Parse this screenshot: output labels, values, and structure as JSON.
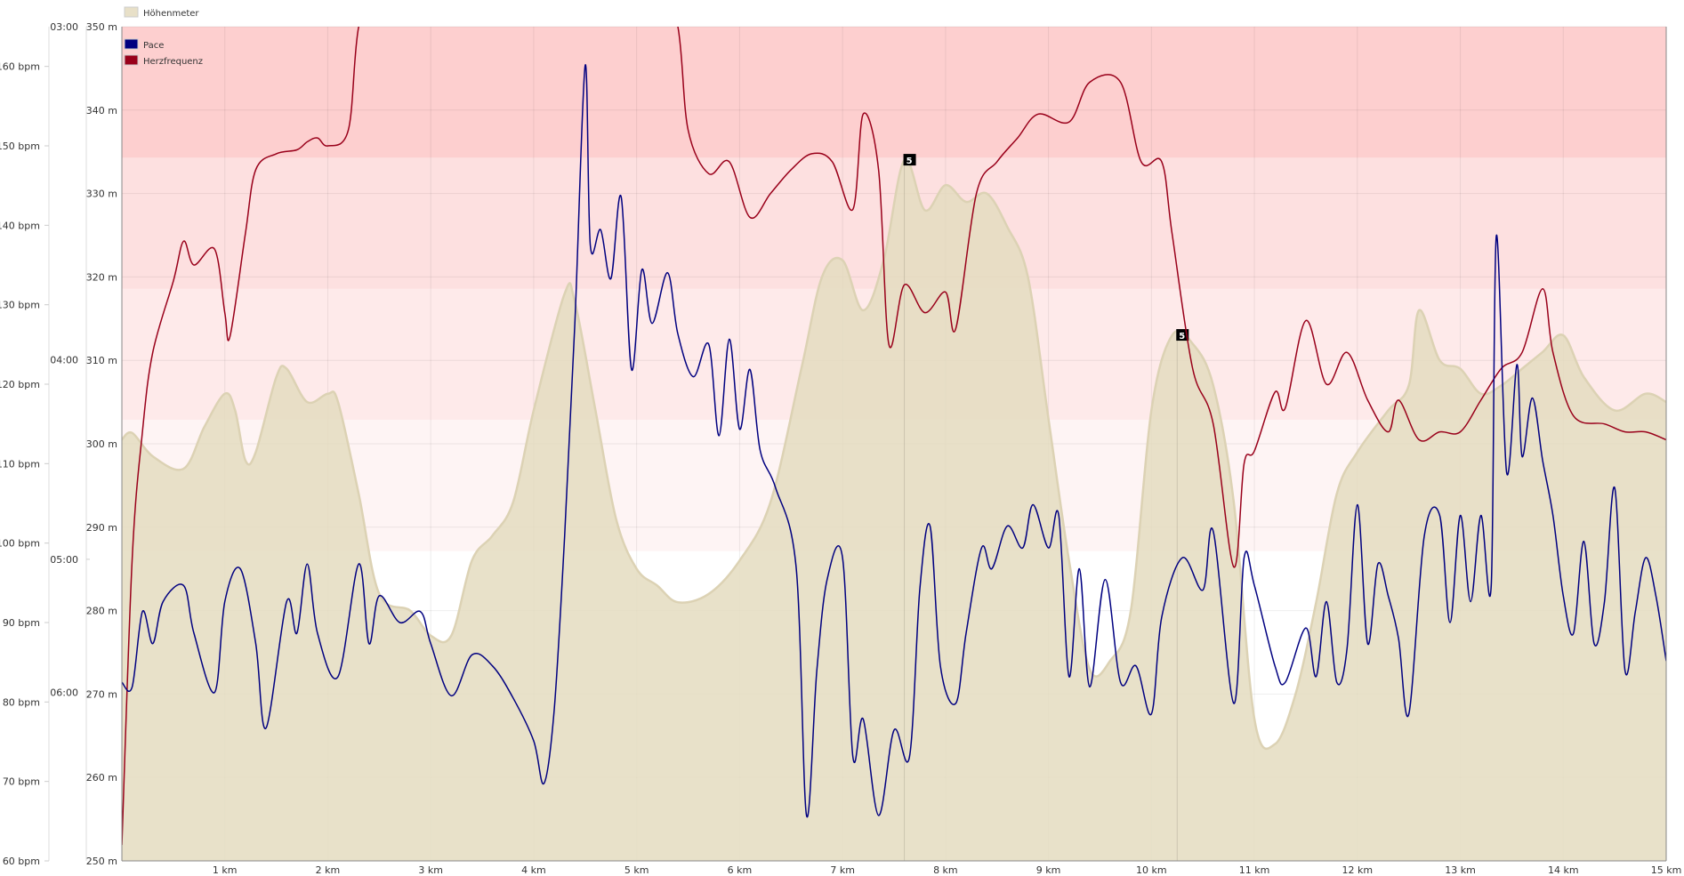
{
  "chart_data": {
    "type": "line",
    "title": "",
    "xlabel": "",
    "x_unit": "km",
    "xlim": [
      0,
      15
    ],
    "x_ticks": [
      "1 km",
      "2 km",
      "3 km",
      "4 km",
      "5 km",
      "6 km",
      "7 km",
      "8 km",
      "9 km",
      "10 km",
      "11 km",
      "12 km",
      "13 km",
      "14 km",
      "15 km"
    ],
    "axes": {
      "heart_rate": {
        "ylim": [
          60,
          165
        ],
        "ticks": [
          "60 bpm",
          "70 bpm",
          "80 bpm",
          "90 bpm",
          "100 bpm",
          "110 bpm",
          "120 bpm",
          "130 bpm",
          "140 bpm",
          "150 bpm",
          "160 bpm"
        ],
        "tick_values": [
          60,
          70,
          80,
          90,
          100,
          110,
          120,
          130,
          140,
          150,
          160
        ]
      },
      "pace": {
        "scale": "speed (inverse pace)",
        "speed_kmh_range": [
          7.47,
          20
        ],
        "ticks": [
          "03:00",
          "04:00",
          "05:00",
          "06:00"
        ],
        "tick_values_min_per_km": [
          3,
          4,
          5,
          6
        ]
      },
      "elevation": {
        "ylim": [
          250,
          350
        ],
        "ticks": [
          "250 m",
          "260 m",
          "270 m",
          "280 m",
          "290 m",
          "300 m",
          "310 m",
          "320 m",
          "330 m",
          "340 m",
          "350 m"
        ],
        "tick_values": [
          250,
          260,
          270,
          280,
          290,
          300,
          310,
          320,
          330,
          340,
          350
        ]
      }
    },
    "legend": [
      {
        "name": "Höhenmeter",
        "color": "#e8e0c8",
        "placement": "top-left above plot"
      },
      {
        "name": "Pace",
        "color": "#000080",
        "placement": "top-left inside plot"
      },
      {
        "name": "Herzfrequenz",
        "color": "#99001a",
        "placement": "top-left inside plot"
      }
    ],
    "heart_rate_zones_bpm": [
      {
        "from": 99,
        "to": 115.5,
        "color": "#fef4f4"
      },
      {
        "from": 115.5,
        "to": 132,
        "color": "#feeaea"
      },
      {
        "from": 132,
        "to": 148.5,
        "color": "#fde0e0"
      },
      {
        "from": 148.5,
        "to": 165,
        "color": "#fdcfcf"
      }
    ],
    "annotations": [
      {
        "x": 7.6,
        "label": "5",
        "series": "Höhenmeter",
        "y": 334
      },
      {
        "x": 10.25,
        "label": "5",
        "series": "Höhenmeter",
        "y": 313
      }
    ],
    "series": [
      {
        "name": "Höhenmeter",
        "unit": "m",
        "axis": "elevation",
        "kind": "area",
        "x": [
          0,
          0.1,
          0.3,
          0.6,
          0.8,
          1.0,
          1.1,
          1.2,
          1.3,
          1.5,
          1.6,
          1.8,
          2.0,
          2.1,
          2.3,
          2.5,
          2.8,
          3.0,
          3.2,
          3.4,
          3.6,
          3.8,
          4.0,
          4.3,
          4.4,
          4.6,
          4.8,
          5.0,
          5.2,
          5.4,
          5.7,
          6.0,
          6.3,
          6.6,
          6.8,
          7.0,
          7.2,
          7.4,
          7.6,
          7.8,
          8.0,
          8.2,
          8.4,
          8.6,
          8.8,
          9.0,
          9.2,
          9.4,
          9.6,
          9.8,
          10.0,
          10.2,
          10.4,
          10.6,
          10.8,
          11.0,
          11.2,
          11.4,
          11.6,
          11.8,
          12.0,
          12.3,
          12.5,
          12.6,
          12.8,
          13.0,
          13.2,
          13.4,
          13.6,
          13.8,
          14.0,
          14.2,
          14.5,
          14.8,
          15.0
        ],
        "values": [
          300.5,
          301.3,
          298.5,
          297,
          302,
          306,
          304,
          298,
          299,
          308,
          309,
          305,
          306,
          305,
          294,
          282,
          280,
          277,
          277,
          286,
          289,
          293,
          304,
          318,
          317,
          304,
          291,
          285,
          283,
          281,
          282,
          286,
          293,
          309,
          320,
          322,
          316,
          322,
          334,
          328,
          331,
          329,
          330,
          326,
          320,
          303,
          286,
          273,
          274,
          280,
          304,
          313,
          312,
          307,
          293,
          267,
          264,
          270,
          281,
          294,
          299,
          304,
          307,
          316,
          310,
          309,
          306,
          307,
          309,
          311,
          313,
          308,
          304,
          306,
          305
        ]
      },
      {
        "name": "Herzfrequenz",
        "unit": "bpm",
        "axis": "heart_rate",
        "kind": "line",
        "x": [
          0,
          0.1,
          0.2,
          0.3,
          0.5,
          0.6,
          0.7,
          0.9,
          1.0,
          1.05,
          1.2,
          1.3,
          1.5,
          1.7,
          1.8,
          1.9,
          2.0,
          2.2,
          2.3,
          2.5,
          5.2,
          5.4,
          5.5,
          5.7,
          5.9,
          6.1,
          6.3,
          6.5,
          6.7,
          6.9,
          7.1,
          7.2,
          7.35,
          7.45,
          7.6,
          7.8,
          8.0,
          8.1,
          8.3,
          8.5,
          8.7,
          8.9,
          9.2,
          9.4,
          9.7,
          9.9,
          10.1,
          10.2,
          10.4,
          10.6,
          10.8,
          10.9,
          11.0,
          11.2,
          11.3,
          11.5,
          11.7,
          11.9,
          12.1,
          12.3,
          12.4,
          12.6,
          12.8,
          13.0,
          13.2,
          13.4,
          13.6,
          13.8,
          13.9,
          14.1,
          14.4,
          14.6,
          14.8,
          15.0
        ],
        "values": [
          62,
          98,
          114,
          124,
          133,
          138,
          135,
          137,
          129,
          126,
          139,
          147,
          149,
          149.5,
          150.5,
          151,
          150,
          152,
          165,
          172,
          172,
          165,
          152,
          146.5,
          148,
          141,
          144,
          147,
          149,
          148,
          142,
          154,
          147,
          125,
          132.5,
          129,
          131.6,
          127,
          144,
          148,
          151,
          154,
          153,
          158,
          158,
          148,
          148,
          139,
          122,
          115,
          97,
          110,
          111.6,
          119,
          117,
          128,
          120,
          124,
          118,
          114,
          118,
          113,
          114,
          114,
          118,
          122,
          124,
          132,
          124,
          116,
          115,
          114,
          114,
          113
        ]
      },
      {
        "name": "Pace",
        "unit": "min/km",
        "axis": "pace",
        "kind": "line",
        "x": [
          0,
          0.1,
          0.2,
          0.3,
          0.4,
          0.6,
          0.7,
          0.9,
          1.0,
          1.15,
          1.3,
          1.4,
          1.6,
          1.7,
          1.8,
          1.9,
          2.1,
          2.3,
          2.4,
          2.5,
          2.7,
          2.9,
          3.0,
          3.2,
          3.4,
          3.6,
          3.8,
          4.0,
          4.1,
          4.2,
          4.3,
          4.4,
          4.5,
          4.55,
          4.65,
          4.75,
          4.85,
          4.95,
          5.05,
          5.15,
          5.3,
          5.4,
          5.55,
          5.7,
          5.8,
          5.9,
          6.0,
          6.1,
          6.2,
          6.35,
          6.55,
          6.65,
          6.75,
          6.85,
          7.0,
          7.1,
          7.2,
          7.35,
          7.5,
          7.65,
          7.75,
          7.85,
          7.95,
          8.1,
          8.2,
          8.35,
          8.45,
          8.6,
          8.75,
          8.85,
          9.0,
          9.1,
          9.2,
          9.3,
          9.4,
          9.55,
          9.7,
          9.85,
          10.0,
          10.1,
          10.3,
          10.5,
          10.6,
          10.8,
          10.9,
          11.0,
          11.2,
          11.3,
          11.5,
          11.6,
          11.7,
          11.8,
          11.9,
          12.0,
          12.1,
          12.2,
          12.3,
          12.4,
          12.5,
          12.65,
          12.8,
          12.9,
          13.0,
          13.1,
          13.2,
          13.3,
          13.35,
          13.45,
          13.55,
          13.6,
          13.7,
          13.8,
          13.9,
          14.0,
          14.1,
          14.2,
          14.3,
          14.4,
          14.5,
          14.6,
          14.7,
          14.8,
          14.9,
          15.0
        ],
        "values": [
          5.91,
          5.95,
          5.35,
          5.59,
          5.28,
          5.17,
          5.51,
          6.0,
          5.28,
          5.06,
          5.59,
          6.34,
          5.28,
          5.51,
          5.03,
          5.51,
          5.86,
          5.03,
          5.59,
          5.24,
          5.43,
          5.35,
          5.59,
          6.03,
          5.68,
          5.77,
          6.05,
          6.47,
          6.95,
          6.15,
          4.86,
          3.86,
          3.09,
          3.59,
          3.54,
          3.7,
          3.44,
          4.04,
          3.67,
          3.86,
          3.68,
          3.9,
          4.07,
          3.94,
          4.33,
          3.92,
          4.3,
          4.04,
          4.4,
          4.59,
          5.06,
          7.36,
          5.81,
          5.13,
          4.99,
          6.64,
          6.25,
          7.36,
          6.36,
          6.64,
          5.2,
          4.8,
          5.77,
          6.1,
          5.51,
          4.93,
          5.06,
          4.8,
          4.93,
          4.68,
          4.93,
          4.74,
          5.86,
          5.06,
          5.95,
          5.13,
          5.91,
          5.77,
          6.2,
          5.39,
          4.99,
          5.2,
          4.83,
          6.1,
          4.99,
          5.17,
          5.77,
          5.91,
          5.47,
          5.86,
          5.28,
          5.91,
          5.63,
          4.68,
          5.59,
          5.03,
          5.24,
          5.55,
          6.2,
          4.86,
          4.74,
          5.43,
          4.74,
          5.28,
          4.74,
          5.17,
          3.56,
          4.51,
          4.02,
          4.43,
          4.16,
          4.45,
          4.74,
          5.24,
          5.51,
          4.89,
          5.59,
          5.28,
          4.59,
          5.81,
          5.35,
          4.99,
          5.24,
          5.73
        ]
      }
    ]
  }
}
